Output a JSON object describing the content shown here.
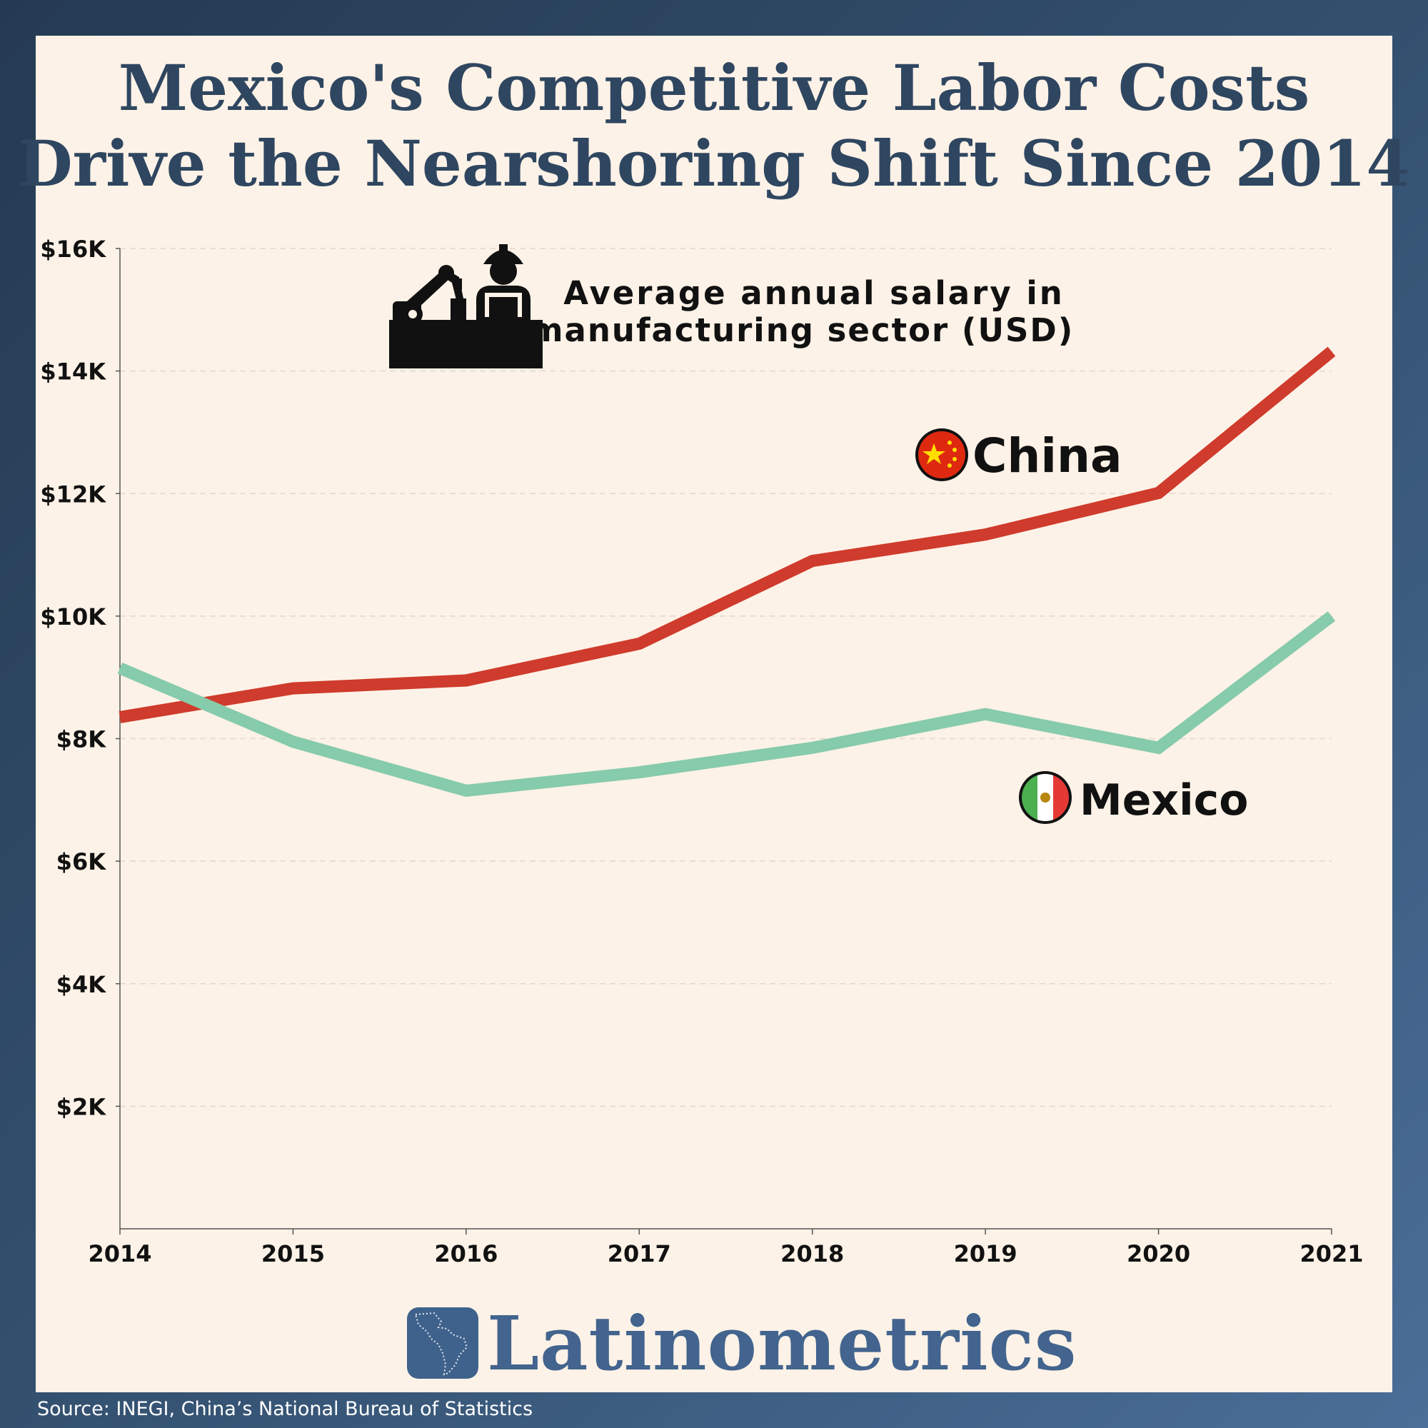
{
  "title": {
    "line1": "Mexico's Competitive Labor Costs",
    "line2": "Drive the Nearshoring Shift Since 2014"
  },
  "chart_data": {
    "type": "line",
    "title": "Mexico's Competitive Labor Costs Drive the Nearshoring Shift Since 2014",
    "subtitle": "Average annual salary in manufacturing sector (USD)",
    "subtitle_lines": [
      "Average annual salary in",
      "manufacturing sector (USD)"
    ],
    "x": [
      "2014",
      "2015",
      "2016",
      "2017",
      "2018",
      "2019",
      "2020",
      "2021"
    ],
    "series": [
      {
        "name": "China",
        "color": "#cf3b2c",
        "flag": "china-flag-icon",
        "values": [
          8350,
          8820,
          8950,
          9550,
          10900,
          11330,
          12010,
          14320
        ]
      },
      {
        "name": "Mexico",
        "color": "#86cbab",
        "flag": "mexico-flag-icon",
        "values": [
          9150,
          7950,
          7150,
          7450,
          7850,
          8400,
          7850,
          10000
        ]
      }
    ],
    "ylim": [
      0,
      16000
    ],
    "yticks": [
      2000,
      4000,
      6000,
      8000,
      10000,
      12000,
      14000,
      16000
    ],
    "ytick_labels": [
      "$2K",
      "$4K",
      "$6K",
      "$8K",
      "$10K",
      "$12K",
      "$14K",
      "$16K"
    ],
    "grid": true,
    "xlabel": "",
    "ylabel": ""
  },
  "icon": "factory-worker-icon",
  "brand": {
    "name": "Latinometrics",
    "logo": "latin-america-map-icon"
  },
  "source": "Source:  INEGI, China’s National Bureau of Statistics",
  "colors": {
    "background": "#2e4663",
    "card": "#fdf2e7",
    "title": "#2f4660",
    "brand": "#42648e"
  }
}
